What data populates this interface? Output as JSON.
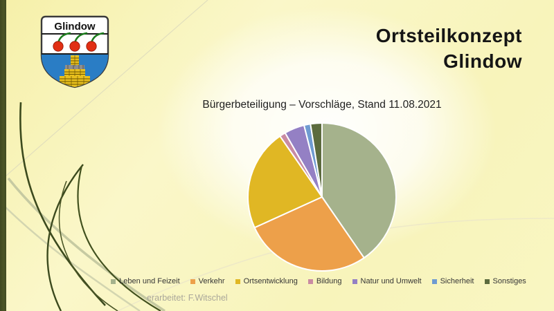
{
  "slide": {
    "title_line1": "Ortsteilkonzept",
    "title_line2": "Glindow",
    "footer": "erarbeitet: F.Witschel"
  },
  "crest": {
    "label": "Glindow",
    "colors": {
      "shield_fill": "#ffffff",
      "shield_border": "#3a3a3a",
      "divider": "#1c1c1c",
      "cherry_red": "#e12f14",
      "stem_green": "#1c7c1d",
      "field_blue": "#2a7dc5",
      "brick_yellow": "#e9c01e",
      "brick_line": "#6b5500",
      "kiln_gray": "#8e8e8e"
    }
  },
  "chart_data": {
    "type": "pie",
    "title": "Bürgerbeteiligung – Vorschläge, Stand 11.08.2021",
    "categories": [
      "Leben und Feizeit",
      "Verkehr",
      "Ortsentwicklung",
      "Bildung",
      "Natur und Umwelt",
      "Sicherheit",
      "Sonstiges"
    ],
    "values": [
      40.4,
      27.8,
      22.2,
      1.3,
      4.4,
      1.4,
      2.5
    ],
    "colors": [
      "#a5b28c",
      "#eda04a",
      "#e0b724",
      "#c98ba3",
      "#9480c4",
      "#6f9bd1",
      "#5c6b3e"
    ],
    "start_angle_deg": 0,
    "direction": "clockwise",
    "slice_border_color": "#ffffff",
    "legend_position": "bottom",
    "data_labels": "none"
  }
}
